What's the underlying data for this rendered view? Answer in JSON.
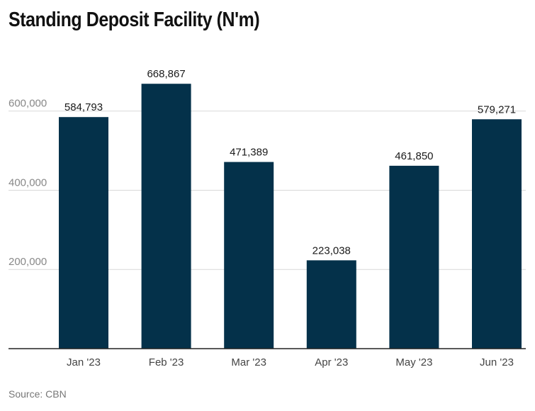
{
  "title": "Standing Deposit Facility (N'm)",
  "source": "Source: CBN",
  "colors": {
    "bar": "#04314a",
    "grid": "#d9d9d9",
    "axis": "#222222",
    "tick": "#888888",
    "label": "#1a1a1a"
  },
  "chart_data": {
    "type": "bar",
    "title": "Standing Deposit Facility (N'm)",
    "categories": [
      "Jan '23",
      "Feb '23",
      "Mar '23",
      "Apr '23",
      "May '23",
      "Jun '23"
    ],
    "values": [
      584793,
      668867,
      471389,
      223038,
      461850,
      579271
    ],
    "value_labels": [
      "584,793",
      "668,867",
      "471,389",
      "223,038",
      "461,850",
      "579,271"
    ],
    "yticks": [
      200000,
      400000,
      600000
    ],
    "ytick_labels": [
      "200,000",
      "400,000",
      "600,000"
    ],
    "ylim": [
      0,
      680000
    ],
    "xlabel": "",
    "ylabel": "",
    "grid": true,
    "legend": "none"
  }
}
